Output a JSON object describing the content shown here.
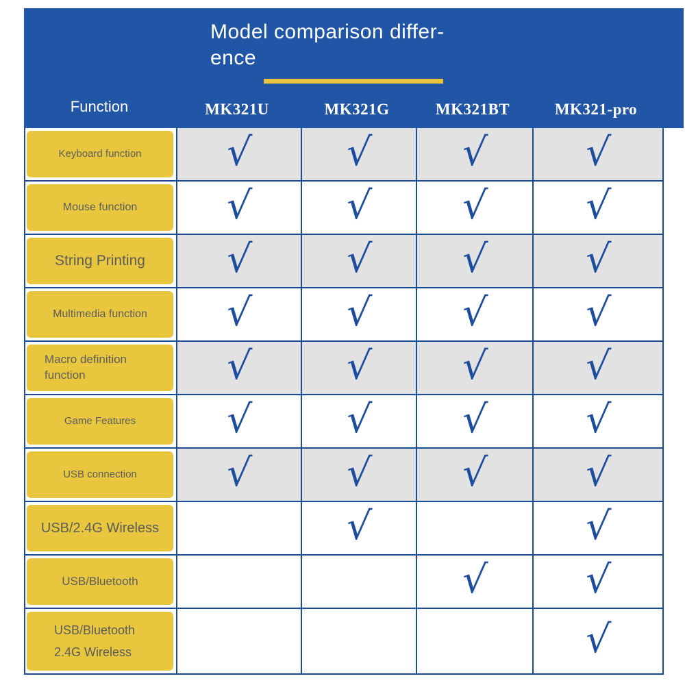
{
  "title": {
    "line1": "Model comparison differ-",
    "line2": "ence"
  },
  "header": {
    "function_label": "Function",
    "models": [
      "MK321U",
      "MK321G",
      "MK321BT",
      "MK321-pro"
    ]
  },
  "table": {
    "check_glyph": "√",
    "rows": [
      {
        "label": "Keyboard function",
        "checks": [
          true,
          true,
          true,
          true
        ]
      },
      {
        "label": "Mouse function",
        "checks": [
          true,
          true,
          true,
          true
        ]
      },
      {
        "label": "String Printing",
        "checks": [
          true,
          true,
          true,
          true
        ]
      },
      {
        "label": "Multimedia function",
        "checks": [
          true,
          true,
          true,
          true
        ]
      },
      {
        "label": "Macro definition\nfunction",
        "checks": [
          true,
          true,
          true,
          true
        ]
      },
      {
        "label": "Game Features",
        "checks": [
          true,
          true,
          true,
          true
        ]
      },
      {
        "label": "USB connection",
        "checks": [
          true,
          true,
          true,
          true
        ]
      },
      {
        "label": "USB/2.4G Wireless",
        "checks": [
          false,
          true,
          false,
          true
        ]
      },
      {
        "label": "USB/Bluetooth",
        "checks": [
          false,
          false,
          true,
          true
        ]
      },
      {
        "label": "USB/Bluetooth\n2.4G Wireless",
        "checks": [
          false,
          false,
          false,
          true
        ]
      }
    ]
  },
  "colors": {
    "banner_blue": "#2155a5",
    "border_blue": "#1b4a97",
    "check_blue": "#1d4d9f",
    "cell_yellow": "#e8c63e",
    "row_gray": "#e2e2e2",
    "underline_gold": "#e6c33c",
    "label_text": "#5c5c5c",
    "header_text": "#ffffff"
  }
}
